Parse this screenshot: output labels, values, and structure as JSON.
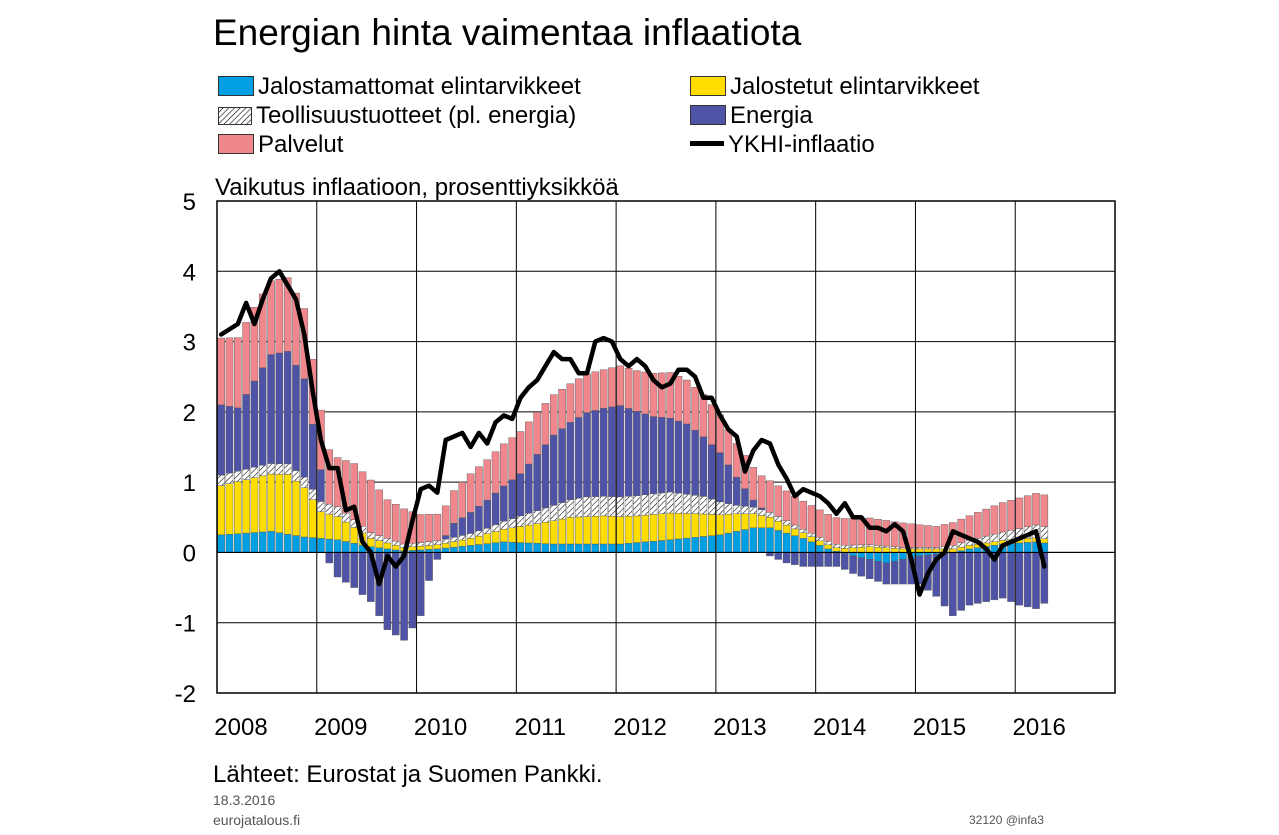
{
  "title": "Energian hinta vaimentaa inflaatiota",
  "legend": [
    {
      "label": "Jalostamattomat elintarvikkeet",
      "color": "#009fe3",
      "kind": "fill"
    },
    {
      "label": "Jalostetut elintarvikkeet",
      "color": "#ffdd00",
      "kind": "fill"
    },
    {
      "label": "Teollisuustuotteet (pl. energia)",
      "color": "#ffffff",
      "kind": "hatch"
    },
    {
      "label": "Energia",
      "color": "#4f53a5",
      "kind": "fill"
    },
    {
      "label": "Palvelut",
      "color": "#f0878d",
      "kind": "fill"
    },
    {
      "label": "YKHI-inflaatio",
      "color": "#000000",
      "kind": "line"
    }
  ],
  "y_axis_label": "Vaikutus inflaatioon, prosenttiyksikköä",
  "source": "Lähteet: Eurostat ja Suomen Pankki.",
  "date": "18.3.2016",
  "site": "eurojatalous.fi",
  "code": "32120 @infa3",
  "chart_data": {
    "type": "bar",
    "stacked": true,
    "ylim": [
      -2,
      5
    ],
    "yticks": [
      "5",
      "4",
      "3",
      "2",
      "1",
      "0",
      "-1",
      "-2"
    ],
    "xticks": [
      "2008",
      "2009",
      "2010",
      "2011",
      "2012",
      "2013",
      "2014",
      "2015",
      "2016"
    ],
    "xlim_months": [
      0,
      108
    ],
    "grid": true,
    "series": [
      {
        "name": "Jalostamattomat elintarvikkeet",
        "anchors": [
          [
            0,
            0.25
          ],
          [
            6,
            0.3
          ],
          [
            10,
            0.22
          ],
          [
            14,
            0.18
          ],
          [
            18,
            0.08
          ],
          [
            22,
            0.02
          ],
          [
            26,
            0.05
          ],
          [
            30,
            0.1
          ],
          [
            34,
            0.15
          ],
          [
            40,
            0.12
          ],
          [
            48,
            0.12
          ],
          [
            54,
            0.18
          ],
          [
            60,
            0.25
          ],
          [
            64,
            0.35
          ],
          [
            66,
            0.35
          ],
          [
            70,
            0.2
          ],
          [
            73,
            0.05
          ],
          [
            76,
            -0.05
          ],
          [
            80,
            -0.15
          ],
          [
            84,
            -0.05
          ],
          [
            88,
            0.0
          ],
          [
            90,
            0.05
          ],
          [
            94,
            0.12
          ],
          [
            98,
            0.15
          ],
          [
            100,
            0.12
          ],
          [
            103,
            0.08
          ]
        ]
      },
      {
        "name": "Jalostetut elintarvikkeet",
        "anchors": [
          [
            0,
            0.7
          ],
          [
            4,
            0.78
          ],
          [
            8,
            0.85
          ],
          [
            10,
            0.7
          ],
          [
            12,
            0.38
          ],
          [
            14,
            0.33
          ],
          [
            18,
            0.12
          ],
          [
            22,
            0.05
          ],
          [
            26,
            0.06
          ],
          [
            30,
            0.1
          ],
          [
            34,
            0.18
          ],
          [
            38,
            0.28
          ],
          [
            42,
            0.38
          ],
          [
            46,
            0.4
          ],
          [
            50,
            0.38
          ],
          [
            54,
            0.38
          ],
          [
            58,
            0.32
          ],
          [
            62,
            0.25
          ],
          [
            66,
            0.15
          ],
          [
            70,
            0.08
          ],
          [
            74,
            0.05
          ],
          [
            78,
            0.08
          ],
          [
            82,
            0.05
          ],
          [
            86,
            0.05
          ],
          [
            90,
            0.05
          ],
          [
            94,
            0.05
          ],
          [
            98,
            0.06
          ],
          [
            103,
            0.06
          ]
        ]
      },
      {
        "name": "Teollisuustuotteet (pl. energia)",
        "anchors": [
          [
            0,
            0.15
          ],
          [
            6,
            0.15
          ],
          [
            10,
            0.15
          ],
          [
            14,
            0.14
          ],
          [
            18,
            0.08
          ],
          [
            22,
            0.05
          ],
          [
            24,
            0.05
          ],
          [
            28,
            0.06
          ],
          [
            32,
            0.08
          ],
          [
            36,
            0.15
          ],
          [
            40,
            0.22
          ],
          [
            44,
            0.28
          ],
          [
            48,
            0.28
          ],
          [
            54,
            0.3
          ],
          [
            58,
            0.25
          ],
          [
            62,
            0.12
          ],
          [
            66,
            0.07
          ],
          [
            70,
            0.05
          ],
          [
            74,
            0.05
          ],
          [
            78,
            0.03
          ],
          [
            82,
            0.02
          ],
          [
            86,
            0.02
          ],
          [
            88,
            0.05
          ],
          [
            94,
            0.12
          ],
          [
            98,
            0.18
          ],
          [
            103,
            0.15
          ]
        ]
      },
      {
        "name": "Energia",
        "anchors": [
          [
            0,
            1.0
          ],
          [
            2,
            0.9
          ],
          [
            6,
            1.55
          ],
          [
            8,
            1.6
          ],
          [
            10,
            1.4
          ],
          [
            12,
            0.45
          ],
          [
            13,
            -0.15
          ],
          [
            14,
            -0.35
          ],
          [
            16,
            -0.5
          ],
          [
            18,
            -0.7
          ],
          [
            20,
            -1.1
          ],
          [
            22,
            -1.25
          ],
          [
            24,
            -0.9
          ],
          [
            25,
            -0.4
          ],
          [
            26,
            -0.1
          ],
          [
            28,
            0.2
          ],
          [
            32,
            0.4
          ],
          [
            36,
            0.6
          ],
          [
            40,
            1.0
          ],
          [
            44,
            1.2
          ],
          [
            48,
            1.3
          ],
          [
            52,
            1.1
          ],
          [
            56,
            1.0
          ],
          [
            60,
            0.7
          ],
          [
            62,
            0.4
          ],
          [
            64,
            0.1
          ],
          [
            66,
            -0.05
          ],
          [
            68,
            -0.15
          ],
          [
            70,
            -0.2
          ],
          [
            74,
            -0.2
          ],
          [
            76,
            -0.25
          ],
          [
            80,
            -0.3
          ],
          [
            84,
            -0.4
          ],
          [
            86,
            -0.6
          ],
          [
            88,
            -0.9
          ],
          [
            90,
            -0.75
          ],
          [
            94,
            -0.65
          ],
          [
            96,
            -0.75
          ],
          [
            98,
            -0.8
          ],
          [
            100,
            -0.65
          ],
          [
            102,
            -0.6
          ],
          [
            103,
            -0.85
          ]
        ]
      },
      {
        "name": "Palvelut",
        "anchors": [
          [
            0,
            0.95
          ],
          [
            4,
            1.05
          ],
          [
            8,
            1.05
          ],
          [
            10,
            1.0
          ],
          [
            12,
            0.85
          ],
          [
            14,
            0.7
          ],
          [
            16,
            0.8
          ],
          [
            18,
            0.75
          ],
          [
            20,
            0.55
          ],
          [
            22,
            0.5
          ],
          [
            24,
            0.4
          ],
          [
            26,
            0.38
          ],
          [
            30,
            0.55
          ],
          [
            34,
            0.6
          ],
          [
            38,
            0.6
          ],
          [
            42,
            0.55
          ],
          [
            46,
            0.55
          ],
          [
            50,
            0.58
          ],
          [
            54,
            0.65
          ],
          [
            58,
            0.6
          ],
          [
            62,
            0.48
          ],
          [
            66,
            0.45
          ],
          [
            70,
            0.4
          ],
          [
            74,
            0.38
          ],
          [
            78,
            0.38
          ],
          [
            82,
            0.35
          ],
          [
            86,
            0.3
          ],
          [
            90,
            0.35
          ],
          [
            94,
            0.42
          ],
          [
            98,
            0.45
          ],
          [
            103,
            0.45
          ]
        ]
      },
      {
        "name": "YKHI-inflaatio",
        "kind": "line",
        "anchors": [
          [
            0,
            3.1
          ],
          [
            2,
            3.25
          ],
          [
            3,
            3.55
          ],
          [
            4,
            3.25
          ],
          [
            5,
            3.6
          ],
          [
            6,
            3.9
          ],
          [
            7,
            4.0
          ],
          [
            8,
            3.8
          ],
          [
            9,
            3.6
          ],
          [
            10,
            3.1
          ],
          [
            11,
            2.3
          ],
          [
            12,
            1.6
          ],
          [
            13,
            1.2
          ],
          [
            14,
            1.2
          ],
          [
            15,
            0.6
          ],
          [
            16,
            0.65
          ],
          [
            17,
            0.15
          ],
          [
            18,
            0.0
          ],
          [
            19,
            -0.45
          ],
          [
            20,
            -0.05
          ],
          [
            21,
            -0.2
          ],
          [
            22,
            -0.05
          ],
          [
            23,
            0.45
          ],
          [
            24,
            0.9
          ],
          [
            25,
            0.95
          ],
          [
            26,
            0.85
          ],
          [
            27,
            1.6
          ],
          [
            29,
            1.7
          ],
          [
            30,
            1.5
          ],
          [
            31,
            1.7
          ],
          [
            32,
            1.55
          ],
          [
            33,
            1.85
          ],
          [
            34,
            1.95
          ],
          [
            35,
            1.9
          ],
          [
            36,
            2.2
          ],
          [
            37,
            2.35
          ],
          [
            38,
            2.45
          ],
          [
            39,
            2.65
          ],
          [
            40,
            2.85
          ],
          [
            41,
            2.75
          ],
          [
            42,
            2.75
          ],
          [
            43,
            2.55
          ],
          [
            44,
            2.55
          ],
          [
            45,
            3.0
          ],
          [
            46,
            3.05
          ],
          [
            47,
            3.0
          ],
          [
            48,
            2.75
          ],
          [
            49,
            2.65
          ],
          [
            50,
            2.75
          ],
          [
            51,
            2.65
          ],
          [
            52,
            2.45
          ],
          [
            53,
            2.35
          ],
          [
            54,
            2.4
          ],
          [
            55,
            2.6
          ],
          [
            56,
            2.6
          ],
          [
            57,
            2.5
          ],
          [
            58,
            2.2
          ],
          [
            59,
            2.2
          ],
          [
            60,
            1.95
          ],
          [
            61,
            1.75
          ],
          [
            62,
            1.65
          ],
          [
            63,
            1.15
          ],
          [
            64,
            1.45
          ],
          [
            65,
            1.6
          ],
          [
            66,
            1.55
          ],
          [
            67,
            1.25
          ],
          [
            68,
            1.05
          ],
          [
            69,
            0.8
          ],
          [
            70,
            0.9
          ],
          [
            71,
            0.85
          ],
          [
            72,
            0.8
          ],
          [
            73,
            0.7
          ],
          [
            74,
            0.55
          ],
          [
            75,
            0.7
          ],
          [
            76,
            0.5
          ],
          [
            77,
            0.5
          ],
          [
            78,
            0.35
          ],
          [
            79,
            0.35
          ],
          [
            80,
            0.3
          ],
          [
            81,
            0.4
          ],
          [
            82,
            0.3
          ],
          [
            83,
            -0.1
          ],
          [
            84,
            -0.6
          ],
          [
            85,
            -0.3
          ],
          [
            86,
            -0.1
          ],
          [
            87,
            0.0
          ],
          [
            88,
            0.3
          ],
          [
            89,
            0.25
          ],
          [
            90,
            0.2
          ],
          [
            91,
            0.15
          ],
          [
            92,
            0.05
          ],
          [
            93,
            -0.1
          ],
          [
            94,
            0.1
          ],
          [
            95,
            0.15
          ],
          [
            96,
            0.2
          ],
          [
            97,
            0.25
          ],
          [
            98,
            0.3
          ],
          [
            99,
            -0.2
          ]
        ]
      }
    ]
  }
}
